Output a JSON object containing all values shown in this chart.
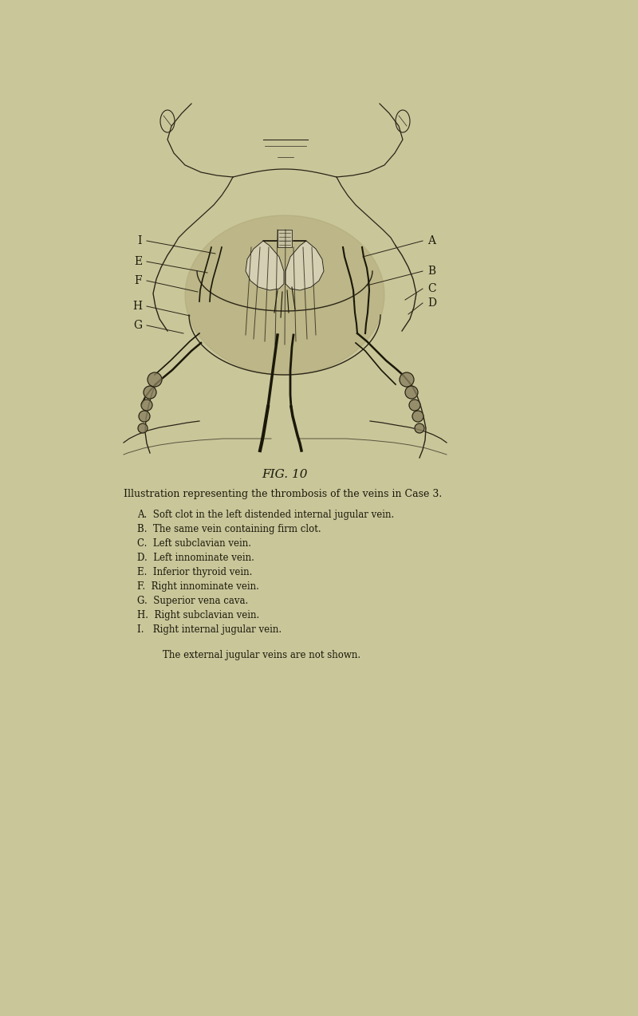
{
  "background_color": "#c9c69a",
  "fig_width": 8.0,
  "fig_height": 12.74,
  "title": "FIG. 10",
  "caption_line1": "Illustration representing the thrombosis of the veins in Case 3.",
  "legend_lines": [
    "A.  Soft clot in the left distended internal jugular vein.",
    "B.  The same vein containing firm clot.",
    "C.  Left subclavian vein.",
    "D.  Left innominate vein.",
    "E.  Inferior thyroid vein.",
    "F.  Right innominate vein.",
    "G.  Superior vena cava.",
    "H.  Right subclavian vein.",
    "I.   Right internal jugular vein."
  ],
  "footnote": "The external jugular veins are not shown.",
  "text_color": "#1a1a0a",
  "line_color": "#2a2416",
  "flesh_color": "#b8b080",
  "shadow_color": "#8a8060"
}
